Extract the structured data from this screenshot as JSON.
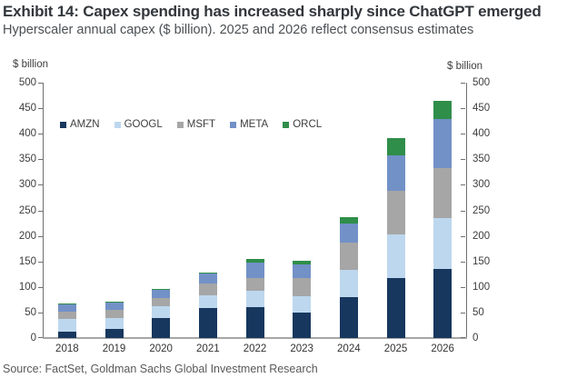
{
  "header": {
    "title": "Exhibit 14: Capex spending has increased sharply since ChatGPT emerged",
    "subtitle": "Hyperscaler annual capex ($ billion). 2025 and 2026 reflect consensus estimates"
  },
  "footer": {
    "source": "Source: FactSet, Goldman Sachs Global Investment Research"
  },
  "chart_data": {
    "type": "bar",
    "stacked": true,
    "title": "Hyperscaler annual capex ($ billion)",
    "categories": [
      "2018",
      "2019",
      "2020",
      "2021",
      "2022",
      "2023",
      "2024",
      "2025",
      "2026"
    ],
    "series": [
      {
        "name": "AMZN",
        "color": "#17375E",
        "values": [
          13,
          17,
          40,
          59,
          61,
          50,
          80,
          118,
          135
        ]
      },
      {
        "name": "GOOGL",
        "color": "#BDD7EE",
        "values": [
          25,
          23,
          22,
          25,
          32,
          32,
          53,
          85,
          100
        ]
      },
      {
        "name": "MSFT",
        "color": "#A6A6A6",
        "values": [
          14,
          15,
          17,
          23,
          25,
          35,
          53,
          86,
          97
        ]
      },
      {
        "name": "META",
        "color": "#7291C7",
        "values": [
          14,
          15,
          15,
          19,
          30,
          27,
          39,
          69,
          97
        ]
      },
      {
        "name": "ORCL",
        "color": "#2F8E49",
        "values": [
          2,
          2,
          2,
          2,
          6,
          8,
          12,
          33,
          36
        ]
      }
    ],
    "totals": [
      68,
      72,
      96,
      128,
      154,
      152,
      237,
      391,
      465
    ],
    "ylim": [
      0,
      500
    ],
    "ytick_step": 50,
    "left_axis_unit": "$ billion",
    "right_axis_unit": "$ billion",
    "legend_position": "inside-top-left",
    "grid": false
  }
}
